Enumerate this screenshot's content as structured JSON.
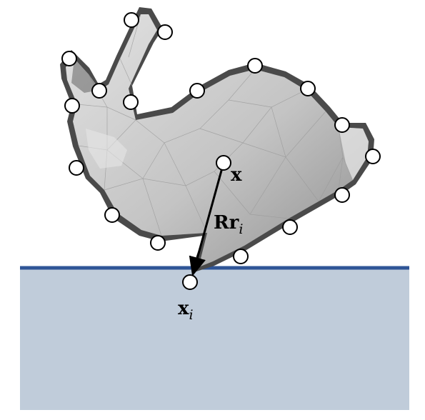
{
  "labels": {
    "center": "x",
    "offset": "Rr",
    "offset_sub": "i",
    "contact": "x",
    "contact_sub": "i"
  },
  "colors": {
    "ground_fill": "#c0ccda",
    "ground_line": "#2f5597",
    "body_light": "#d4d4d4",
    "body_mid": "#a9a9a9",
    "body_dark": "#4a4a4a",
    "marker_fill": "#ffffff",
    "marker_stroke": "#000000"
  },
  "icons": [
    "bunny-mesh",
    "contact-marker",
    "offset-arrow"
  ]
}
